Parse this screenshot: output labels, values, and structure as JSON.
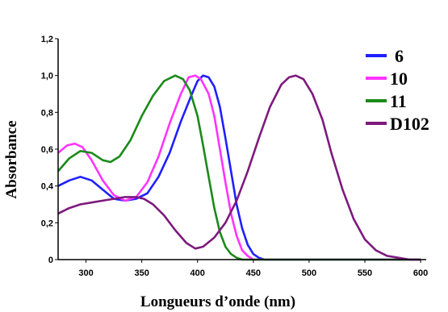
{
  "chart_data": {
    "type": "line",
    "xlabel": "Longueurs d’onde (nm)",
    "ylabel": "Absorbance",
    "xlim": [
      275,
      605
    ],
    "ylim": [
      0,
      1.2
    ],
    "x_ticks": [
      300,
      350,
      400,
      450,
      500,
      550,
      600
    ],
    "y_ticks": [
      0,
      0.2,
      0.4,
      0.6,
      0.8,
      1.0,
      1.2
    ],
    "x_tick_labels": [
      "300",
      "350",
      "400",
      "450",
      "500",
      "550",
      "600"
    ],
    "y_tick_labels": [
      "0",
      "0,2",
      "0,4",
      "0,6",
      "0,8",
      "1,0",
      "1,2"
    ],
    "grid": false,
    "legend_position": "right",
    "series": [
      {
        "name": "6",
        "color": "#1f1fff",
        "points": [
          [
            275,
            0.4
          ],
          [
            285,
            0.43
          ],
          [
            295,
            0.45
          ],
          [
            305,
            0.43
          ],
          [
            315,
            0.38
          ],
          [
            325,
            0.33
          ],
          [
            335,
            0.32
          ],
          [
            345,
            0.33
          ],
          [
            355,
            0.36
          ],
          [
            365,
            0.45
          ],
          [
            375,
            0.58
          ],
          [
            385,
            0.75
          ],
          [
            395,
            0.9
          ],
          [
            400,
            0.97
          ],
          [
            405,
            1.0
          ],
          [
            410,
            0.99
          ],
          [
            415,
            0.94
          ],
          [
            420,
            0.83
          ],
          [
            425,
            0.66
          ],
          [
            430,
            0.48
          ],
          [
            435,
            0.3
          ],
          [
            440,
            0.17
          ],
          [
            445,
            0.08
          ],
          [
            450,
            0.03
          ],
          [
            455,
            0.01
          ],
          [
            460,
            0.0
          ],
          [
            480,
            0.0
          ],
          [
            500,
            0.0
          ],
          [
            600,
            0.0
          ]
        ]
      },
      {
        "name": "10",
        "color": "#ff33ff",
        "points": [
          [
            275,
            0.58
          ],
          [
            283,
            0.62
          ],
          [
            290,
            0.63
          ],
          [
            297,
            0.61
          ],
          [
            305,
            0.54
          ],
          [
            315,
            0.43
          ],
          [
            325,
            0.35
          ],
          [
            335,
            0.32
          ],
          [
            345,
            0.34
          ],
          [
            355,
            0.42
          ],
          [
            365,
            0.56
          ],
          [
            375,
            0.74
          ],
          [
            385,
            0.9
          ],
          [
            392,
            0.99
          ],
          [
            398,
            1.0
          ],
          [
            403,
            0.98
          ],
          [
            410,
            0.9
          ],
          [
            415,
            0.78
          ],
          [
            420,
            0.6
          ],
          [
            425,
            0.42
          ],
          [
            430,
            0.25
          ],
          [
            435,
            0.13
          ],
          [
            440,
            0.05
          ],
          [
            445,
            0.02
          ],
          [
            450,
            0.0
          ],
          [
            600,
            0.0
          ]
        ]
      },
      {
        "name": "11",
        "color": "#1a8a1a",
        "points": [
          [
            275,
            0.48
          ],
          [
            285,
            0.55
          ],
          [
            295,
            0.59
          ],
          [
            305,
            0.58
          ],
          [
            315,
            0.54
          ],
          [
            322,
            0.53
          ],
          [
            330,
            0.56
          ],
          [
            340,
            0.65
          ],
          [
            350,
            0.78
          ],
          [
            360,
            0.89
          ],
          [
            370,
            0.97
          ],
          [
            380,
            1.0
          ],
          [
            387,
            0.98
          ],
          [
            393,
            0.92
          ],
          [
            400,
            0.78
          ],
          [
            405,
            0.62
          ],
          [
            410,
            0.45
          ],
          [
            415,
            0.28
          ],
          [
            420,
            0.15
          ],
          [
            425,
            0.07
          ],
          [
            430,
            0.03
          ],
          [
            435,
            0.01
          ],
          [
            440,
            0.0
          ],
          [
            600,
            0.0
          ]
        ]
      },
      {
        "name": "D102",
        "color": "#7d1a7d",
        "points": [
          [
            275,
            0.25
          ],
          [
            285,
            0.28
          ],
          [
            295,
            0.3
          ],
          [
            305,
            0.31
          ],
          [
            315,
            0.32
          ],
          [
            325,
            0.33
          ],
          [
            335,
            0.34
          ],
          [
            345,
            0.34
          ],
          [
            352,
            0.33
          ],
          [
            360,
            0.3
          ],
          [
            370,
            0.24
          ],
          [
            380,
            0.16
          ],
          [
            390,
            0.09
          ],
          [
            398,
            0.06
          ],
          [
            405,
            0.07
          ],
          [
            415,
            0.12
          ],
          [
            425,
            0.2
          ],
          [
            435,
            0.32
          ],
          [
            445,
            0.48
          ],
          [
            455,
            0.66
          ],
          [
            465,
            0.83
          ],
          [
            475,
            0.95
          ],
          [
            482,
            0.99
          ],
          [
            488,
            1.0
          ],
          [
            495,
            0.98
          ],
          [
            503,
            0.9
          ],
          [
            512,
            0.76
          ],
          [
            520,
            0.58
          ],
          [
            530,
            0.38
          ],
          [
            540,
            0.22
          ],
          [
            550,
            0.11
          ],
          [
            560,
            0.05
          ],
          [
            570,
            0.02
          ],
          [
            580,
            0.01
          ],
          [
            590,
            0.0
          ],
          [
            600,
            0.0
          ]
        ]
      }
    ]
  }
}
